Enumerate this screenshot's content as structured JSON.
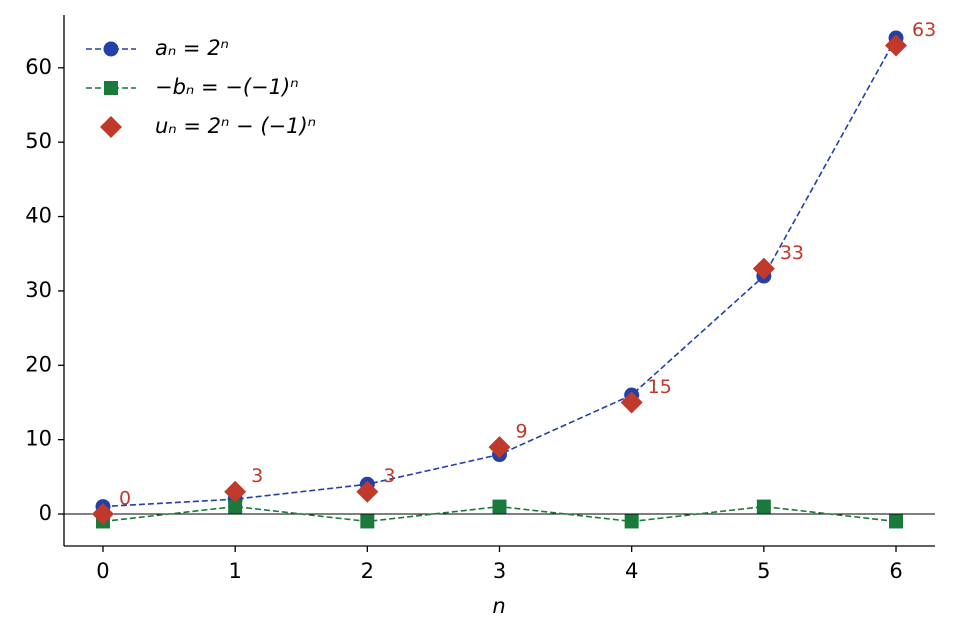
{
  "chart_data": {
    "type": "line",
    "xlabel": "n",
    "x": [
      0,
      1,
      2,
      3,
      4,
      5,
      6
    ],
    "series": [
      {
        "name": "aₙ = 2ⁿ",
        "color": "#2340a8",
        "marker": "circle",
        "linestyle": "dashed",
        "values": [
          1,
          2,
          4,
          8,
          16,
          32,
          64
        ]
      },
      {
        "name": "−bₙ = −(−1)ⁿ",
        "color": "#1a7a3c",
        "marker": "square",
        "linestyle": "dashed",
        "values": [
          -1,
          1,
          -1,
          1,
          -1,
          1,
          -1
        ]
      },
      {
        "name": "uₙ = 2ⁿ − (−1)ⁿ",
        "color": "#c0392b",
        "marker": "diamond",
        "linestyle": "none",
        "values": [
          0,
          3,
          3,
          9,
          15,
          33,
          63
        ],
        "data_labels": true
      }
    ],
    "xlim": [
      -0.295,
      6.295
    ],
    "ylim": [
      -4.3,
      67.1
    ],
    "xticks": [
      0,
      1,
      2,
      3,
      4,
      5,
      6
    ],
    "yticks": [
      0,
      10,
      20,
      30,
      40,
      50,
      60
    ],
    "zero_line": true,
    "legend": "upper-left"
  }
}
